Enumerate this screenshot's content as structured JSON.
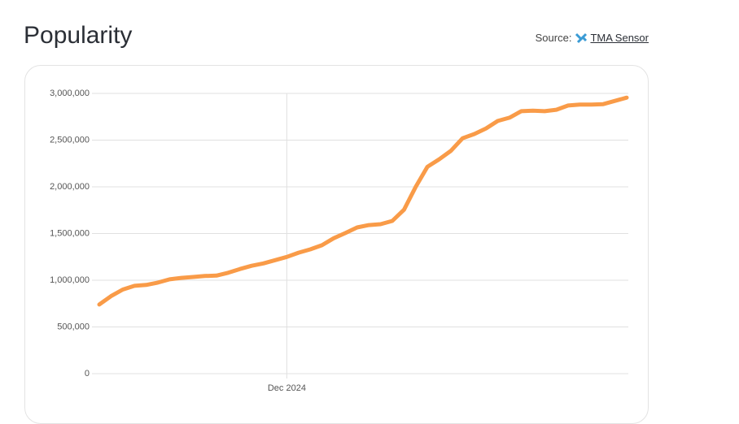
{
  "source": {
    "label": "Source:",
    "link": "TMA Sensor"
  },
  "chart_data": {
    "type": "line",
    "title": "Popularity",
    "categories": [
      null,
      null,
      null,
      null,
      null,
      null,
      null,
      null,
      null,
      null,
      null,
      null,
      null,
      null,
      null,
      null,
      "Dec 2024",
      null,
      null,
      null,
      null,
      null,
      null,
      null,
      null,
      null,
      null,
      null,
      null,
      null,
      null,
      null,
      null,
      null,
      null,
      null,
      null,
      null,
      null,
      null,
      null,
      null,
      null,
      null,
      null,
      null
    ],
    "values": [
      740000,
      830000,
      900000,
      940000,
      950000,
      975000,
      1010000,
      1025000,
      1035000,
      1045000,
      1050000,
      1080000,
      1120000,
      1155000,
      1180000,
      1215000,
      1250000,
      1295000,
      1330000,
      1375000,
      1450000,
      1505000,
      1565000,
      1590000,
      1600000,
      1635000,
      1755000,
      2000000,
      2215000,
      2295000,
      2385000,
      2520000,
      2565000,
      2625000,
      2705000,
      2740000,
      2810000,
      2815000,
      2810000,
      2825000,
      2870000,
      2880000,
      2880000,
      2885000,
      2920000,
      2955000
    ],
    "color": "#f99b48",
    "ylim": [
      0,
      3000000
    ],
    "yticks": [
      0,
      {
        "value": 500000,
        "label": "500,000"
      },
      {
        "value": 1000000,
        "label": "1,000,000"
      },
      {
        "value": 1500000,
        "label": "1,500,000"
      },
      {
        "value": 2000000,
        "label": "2,000,000"
      },
      {
        "value": 2500000,
        "label": "2,500,000"
      },
      {
        "value": 3000000,
        "label": "3,000,000"
      }
    ],
    "grid": true
  }
}
